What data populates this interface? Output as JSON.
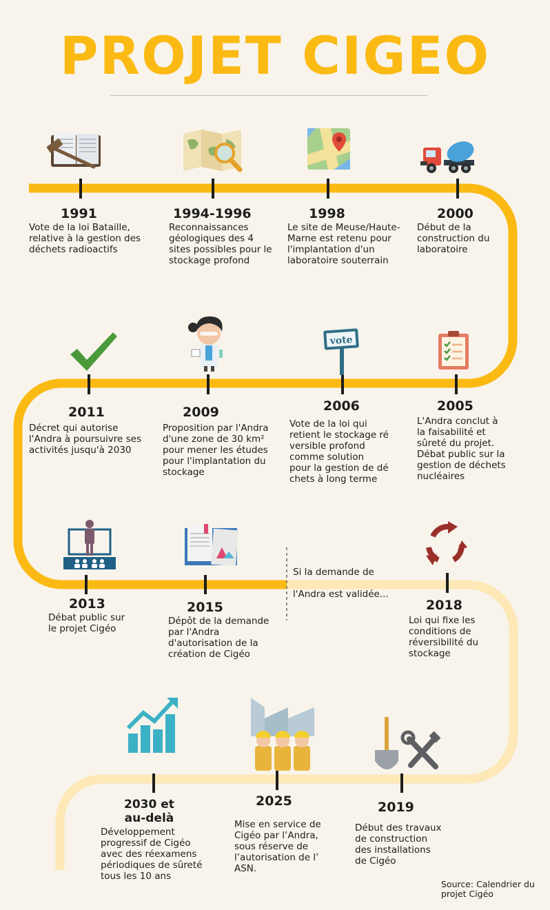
{
  "title": "PROJET CIGEO",
  "colors": {
    "accent": "#fbba13",
    "accent_light": "#fde8b6",
    "text": "#1d1d1b",
    "background": "#f8f4ec"
  },
  "note": {
    "line1": "Si la demande de",
    "line2": "l'Andra est validée..."
  },
  "source": "Source: Calendrier du\nprojet Cigéo",
  "events": [
    {
      "year": "1991",
      "text": "Vote de la loi Bataille,\nrelative à la gestion des\ndéchets radioactifs",
      "icon": "law-book-gavel-icon"
    },
    {
      "year": "1994-1996",
      "text": "Reconnaissances\ngéologiques des 4\nsites possibles pour le\nstockage profond",
      "icon": "map-magnifier-icon"
    },
    {
      "year": "1998",
      "text": "Le site de Meuse/Haute-\nMarne est retenu pour\nl'implantation d'un\nlaboratoire souterrain",
      "icon": "map-pin-icon"
    },
    {
      "year": "2000",
      "text": "Début de la\nconstruction du\nlaboratoire",
      "icon": "concrete-truck-icon"
    },
    {
      "year": "2005",
      "text": "L'Andra conclut à\nla faisabilité et\nsûreté du projet.\nDébat public sur la\ngestion de déchets\nnucléaires",
      "icon": "clipboard-checklist-icon"
    },
    {
      "year": "2006",
      "text": "Vote de la loi qui\nretient le stockage ré\nversible profond\ncomme solution\npour la gestion de dé\nchets à long terme",
      "icon": "vote-sign-icon",
      "sign": "vote"
    },
    {
      "year": "2009",
      "text": "Proposition par l'Andra\nd'une zone de 30 km²\npour mener les études\npour l'implantation du\nstockage",
      "icon": "scientist-icon"
    },
    {
      "year": "2011",
      "text": "Décret qui autorise\nl'Andra à poursuivre ses\nactivités jusqu'à 2030",
      "icon": "checkmark-icon"
    },
    {
      "year": "2013",
      "text": "Débat public sur\nle projet Cigéo",
      "icon": "presenter-audience-icon"
    },
    {
      "year": "2015",
      "text": "Dépôt de la demande\npar l'Andra\nd'autorisation de la\ncréation de Cigéo",
      "icon": "open-report-icon"
    },
    {
      "year": "2018",
      "text": "Loi qui fixe les\nconditions de\nréversibilité du\nstockage",
      "icon": "recycle-arrows-icon"
    },
    {
      "year": "2019",
      "text": "Début des travaux\nde construction\ndes installations\nde Cigéo",
      "icon": "shovel-tools-icon"
    },
    {
      "year": "2025",
      "text": "Mise en service de\nCigéo par l’Andra,\nsous réserve de\nl’autorisation de l’\nASN.",
      "icon": "factory-workers-icon"
    },
    {
      "year": "2030 et\nau-delà",
      "text": "Développement\nprogressif de Cigéo\navec des réexamens\npériodiques de sûreté\ntous les 10 ans",
      "icon": "growth-chart-icon"
    }
  ]
}
